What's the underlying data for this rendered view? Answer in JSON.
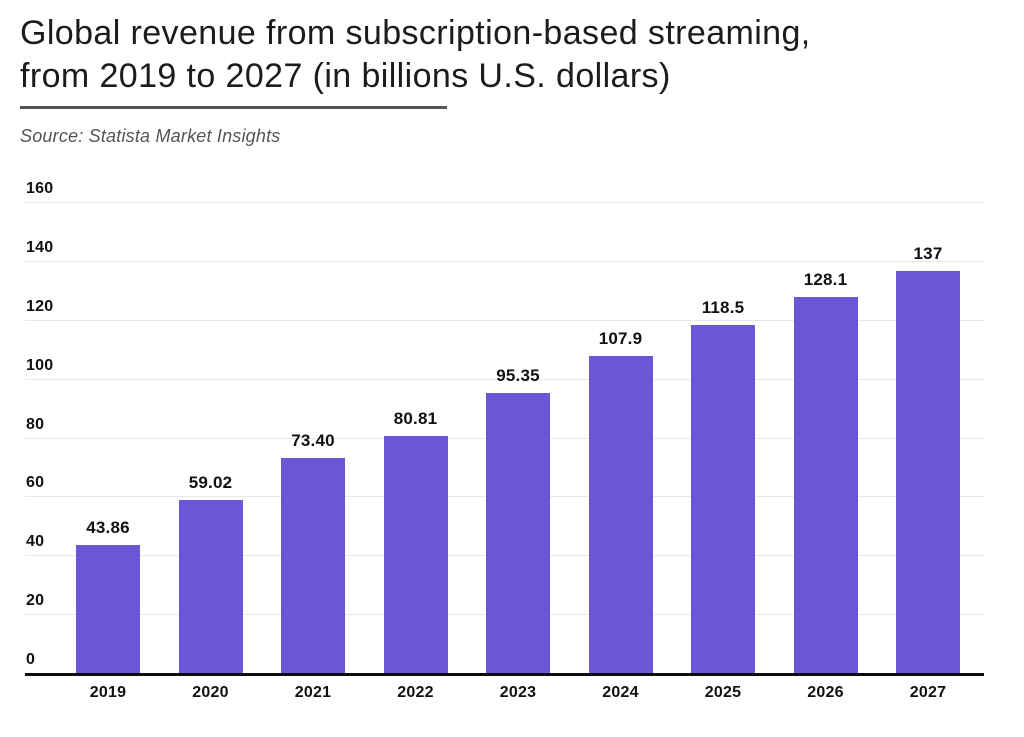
{
  "header": {
    "title_lines": [
      "Global revenue from subscription-based streaming,",
      "from 2019 to 2027 (in billions U.S. dollars)"
    ],
    "source": "Source: Statista Market Insights"
  },
  "colors": {
    "bar": "#6A57D8",
    "axis": "#0d0d0d",
    "grid": "#e8e8e8",
    "title_text": "#1c1c1c",
    "source_text": "#555555",
    "label_text": "#111111"
  },
  "chart_data": {
    "type": "bar",
    "title": "Global revenue from subscription-based streaming, from 2019 to 2027 (in billions U.S. dollars)",
    "source": "Source: Statista Market Insights",
    "categories": [
      "2019",
      "2020",
      "2021",
      "2022",
      "2023",
      "2024",
      "2025",
      "2026",
      "2027"
    ],
    "values": [
      43.86,
      59.02,
      73.4,
      80.81,
      95.35,
      107.9,
      118.5,
      128.1,
      137
    ],
    "value_labels": [
      "43.86",
      "59.02",
      "73.40",
      "80.81",
      "95.35",
      "107.9",
      "118.5",
      "128.1",
      "137"
    ],
    "xlabel": "",
    "ylabel": "",
    "ylim": [
      0,
      160
    ],
    "yticks": [
      0,
      20,
      40,
      60,
      80,
      100,
      120,
      140,
      160
    ],
    "grid": "horizontal-only",
    "legend": "none",
    "bar_color": "#6A57D8"
  }
}
